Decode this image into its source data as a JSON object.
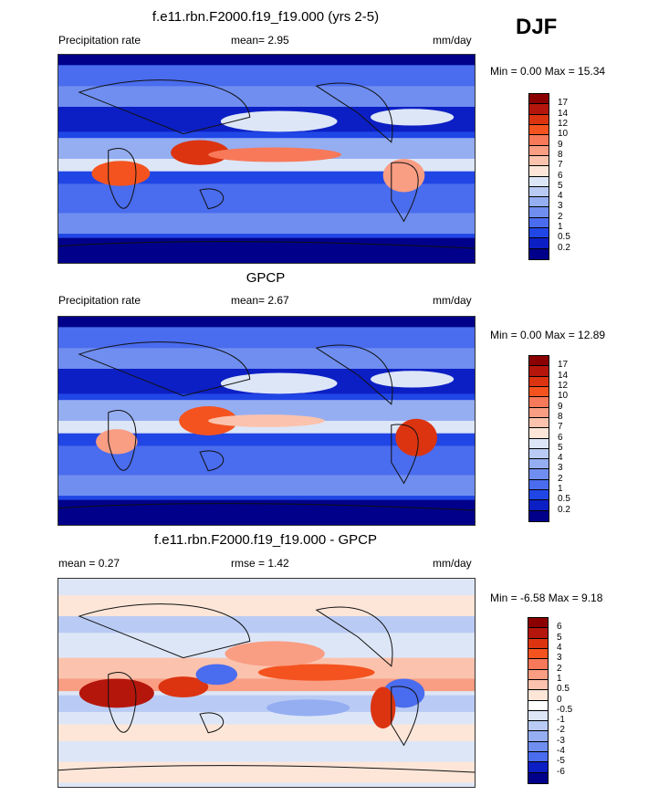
{
  "season": "DJF",
  "chart_data": [
    {
      "type": "heatmap",
      "title": "f.e11.rbn.F2000.f19_f19.000 (yrs 2-5)",
      "left_label": "Precipitation rate",
      "mean_text": "mean=   2.95",
      "unit": "mm/day",
      "minmax_text": "Min =    0.00 Max =  15.34",
      "levels": [
        "17",
        "14",
        "12",
        "10",
        "9",
        "8",
        "7",
        "6",
        "5",
        "4",
        "3",
        "2",
        "1",
        "0.5",
        "0.2"
      ],
      "colors": [
        "#8b0000",
        "#b5160c",
        "#dc3410",
        "#f4531f",
        "#f7795a",
        "#f99d83",
        "#fbc3ad",
        "#fde6d8",
        "#dde6f7",
        "#b9cbf4",
        "#95aef2",
        "#6f8ef0",
        "#4a6cee",
        "#2146e6",
        "#0c1fc4",
        "#01008a"
      ]
    },
    {
      "type": "heatmap",
      "title": "GPCP",
      "left_label": "Precipitation rate",
      "mean_text": "mean=   2.67",
      "unit": "mm/day",
      "minmax_text": "Min =    0.00 Max =  12.89",
      "levels": [
        "17",
        "14",
        "12",
        "10",
        "9",
        "8",
        "7",
        "6",
        "5",
        "4",
        "3",
        "2",
        "1",
        "0.5",
        "0.2"
      ],
      "colors": [
        "#8b0000",
        "#b5160c",
        "#dc3410",
        "#f4531f",
        "#f7795a",
        "#f99d83",
        "#fbc3ad",
        "#fde6d8",
        "#dde6f7",
        "#b9cbf4",
        "#95aef2",
        "#6f8ef0",
        "#4a6cee",
        "#2146e6",
        "#0c1fc4",
        "#01008a"
      ]
    },
    {
      "type": "heatmap",
      "title": "f.e11.rbn.F2000.f19_f19.000 - GPCP",
      "left_label": "mean =   0.27",
      "mean_text": "rmse =   1.42",
      "unit": "mm/day",
      "minmax_text": "Min =   -6.58 Max =   9.18",
      "levels": [
        "6",
        "5",
        "4",
        "3",
        "2",
        "1",
        "0.5",
        "0",
        "-0.5",
        "-1",
        "-2",
        "-3",
        "-4",
        "-5",
        "-6"
      ],
      "colors": [
        "#8b0000",
        "#b5160c",
        "#dc3410",
        "#f4531f",
        "#f7795a",
        "#f99d83",
        "#fbc3ad",
        "#fde6d8",
        "#ffffff",
        "#dde6f7",
        "#b9cbf4",
        "#95aef2",
        "#6f8ef0",
        "#4a6cee",
        "#0c1fc4",
        "#01008a"
      ]
    }
  ]
}
